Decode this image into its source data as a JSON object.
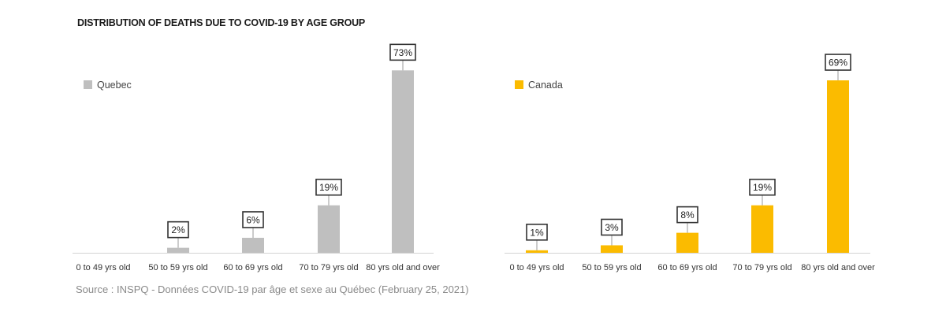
{
  "title": "DISTRIBUTION OF DEATHS DUE TO COVID-19 BY AGE GROUP",
  "source": "Source : INSPQ - Données COVID-19 par âge et sexe au Québec (February 25, 2021)",
  "chart_data": [
    {
      "type": "bar",
      "categories": [
        "0 to 49 yrs old",
        "50 to 59 yrs old",
        "60 to 69 yrs old",
        "70 to 79 yrs old",
        "80 yrs old and over"
      ],
      "series": [
        {
          "name": "Quebec",
          "values": [
            0,
            2,
            6,
            19,
            73
          ],
          "labels": [
            "",
            "2%",
            "6%",
            "19%",
            "73%"
          ],
          "color": "#bfbfbf"
        }
      ],
      "ylim": [
        0,
        75
      ],
      "grid": false,
      "legend": "top-left"
    },
    {
      "type": "bar",
      "categories": [
        "0 to 49 yrs old",
        "50 to 59 yrs old",
        "60 to 69 yrs old",
        "70 to 79 yrs old",
        "80 yrs old and over"
      ],
      "series": [
        {
          "name": "Canada",
          "values": [
            1,
            3,
            8,
            19,
            69
          ],
          "labels": [
            "1%",
            "3%",
            "8%",
            "19%",
            "69%"
          ],
          "color": "#fbbb00"
        }
      ],
      "ylim": [
        0,
        75
      ],
      "grid": false,
      "legend": "top-left"
    }
  ]
}
